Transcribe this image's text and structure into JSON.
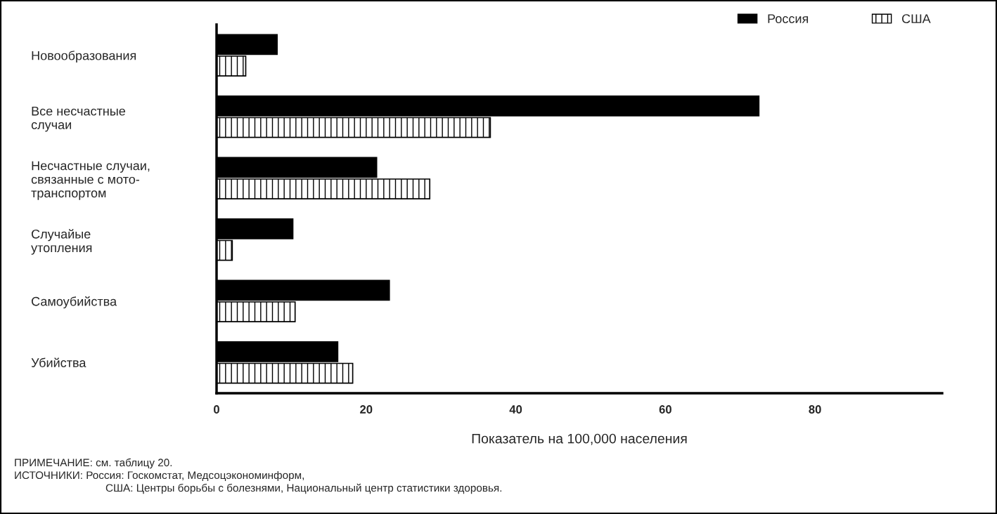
{
  "chart_data": {
    "type": "bar",
    "orientation": "horizontal",
    "categories": [
      "Новообразования",
      "Все несчастные\nслучаи",
      "Несчастные случаи,\nсвязанные с мото-\nтранспортом",
      "Случайые\nутопления",
      "Самоубийства",
      "Убийства"
    ],
    "series": [
      {
        "name": "Россия",
        "color": "#000000",
        "values": [
          8.1,
          72.5,
          21.4,
          10.2,
          23.1,
          16.2
        ]
      },
      {
        "name": "США",
        "color": "#000000",
        "values": [
          3.9,
          36.6,
          28.5,
          2.1,
          10.5,
          18.2
        ]
      }
    ],
    "xlim": [
      0,
      97
    ],
    "xticks": [
      0,
      20,
      40,
      60,
      80
    ],
    "xlabel": "Показатель на 100,000 населения",
    "legend": "top right",
    "grid": false,
    "annotations": [
      "ПРИМЕЧАНИЕ: см. таблицу 20.",
      "ИСТОЧНИКИ: Россия: Госкомстат, Медсоцэкономинформ,",
      "США: Центры борьбы с болезнями, Национальный центр статистики здоровья."
    ]
  }
}
